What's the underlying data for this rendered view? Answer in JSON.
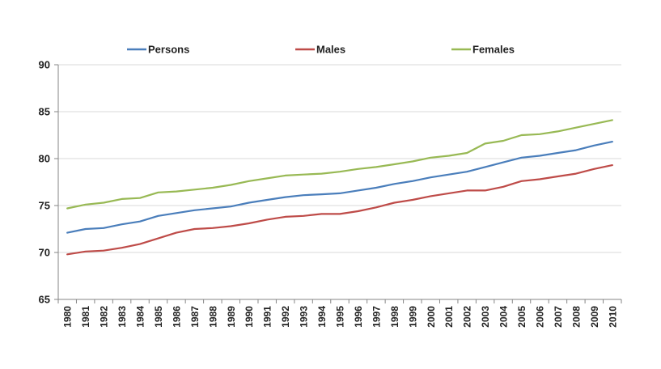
{
  "chart_data": {
    "type": "line",
    "title": "",
    "xlabel": "",
    "ylabel": "",
    "ylim": [
      65,
      90
    ],
    "yticks": [
      65,
      70,
      75,
      80,
      85,
      90
    ],
    "grid": true,
    "legend_position": "top",
    "x": [
      "1980",
      "1981",
      "1982",
      "1983",
      "1984",
      "1985",
      "1986",
      "1987",
      "1988",
      "1989",
      "1990",
      "1991",
      "1992",
      "1993",
      "1994",
      "1995",
      "1996",
      "1997",
      "1998",
      "1999",
      "2000",
      "2001",
      "2002",
      "2003",
      "2004",
      "2005",
      "2006",
      "2007",
      "2008",
      "2009",
      "2010"
    ],
    "series": [
      {
        "name": "Persons",
        "color": "#4a7ebb",
        "values": [
          72.1,
          72.5,
          72.6,
          73.0,
          73.3,
          73.9,
          74.2,
          74.5,
          74.7,
          74.9,
          75.3,
          75.6,
          75.9,
          76.1,
          76.2,
          76.3,
          76.6,
          76.9,
          77.3,
          77.6,
          78.0,
          78.3,
          78.6,
          79.1,
          79.6,
          80.1,
          80.3,
          80.6,
          80.9,
          81.4,
          81.8
        ]
      },
      {
        "name": "Males",
        "color": "#be4b48",
        "values": [
          69.8,
          70.1,
          70.2,
          70.5,
          70.9,
          71.5,
          72.1,
          72.5,
          72.6,
          72.8,
          73.1,
          73.5,
          73.8,
          73.9,
          74.1,
          74.1,
          74.4,
          74.8,
          75.3,
          75.6,
          76.0,
          76.3,
          76.6,
          76.6,
          77.0,
          77.6,
          77.8,
          78.1,
          78.4,
          78.9,
          79.3
        ]
      },
      {
        "name": "Females",
        "color": "#98b954",
        "values": [
          74.7,
          75.1,
          75.3,
          75.7,
          75.8,
          76.4,
          76.5,
          76.7,
          76.9,
          77.2,
          77.6,
          77.9,
          78.2,
          78.3,
          78.4,
          78.6,
          78.9,
          79.1,
          79.4,
          79.7,
          80.1,
          80.3,
          80.6,
          81.6,
          81.9,
          82.5,
          82.6,
          82.9,
          83.3,
          83.7,
          84.1
        ]
      }
    ]
  }
}
